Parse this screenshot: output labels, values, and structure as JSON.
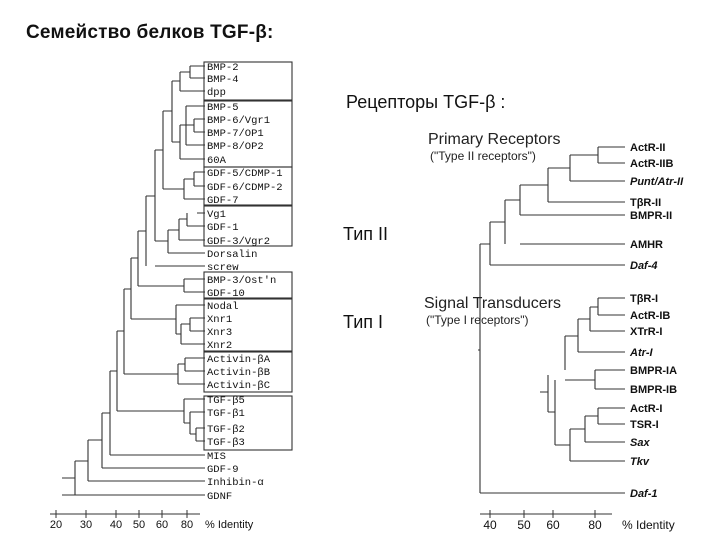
{
  "slide": {
    "title": "Семейство белков TGF-β:",
    "receptor_title": "Рецепторы TGF-β :",
    "type_ii_label": "Тип II",
    "type_i_label": "Тип I"
  },
  "left_tree": {
    "leaves": [
      "BMP-2",
      "BMP-4",
      "dpp",
      "BMP-5",
      "BMP-6/Vgr1",
      "BMP-7/OP1",
      "BMP-8/OP2",
      "60A",
      "GDF-5/CDMP-1",
      "GDF-6/CDMP-2",
      "GDF-7",
      "Vg1",
      "GDF-1",
      "GDF-3/Vgr2",
      "Dorsalin",
      "screw",
      "BMP-3/Ost'n",
      "GDF-10",
      "Nodal",
      "Xnr1",
      "Xnr3",
      "Xnr2",
      "Activin-βA",
      "Activin-βB",
      "Activin-βC",
      "TGF-β5",
      "TGF-β1",
      "TGF-β2",
      "TGF-β3",
      "MIS",
      "GDF-9",
      "Inhibin-α",
      "GDNF"
    ],
    "axis_ticks": [
      "20",
      "30",
      "40",
      "50",
      "60",
      "80"
    ],
    "axis_label": "% Identity"
  },
  "right_tree": {
    "primary_heading": "Primary Receptors",
    "primary_sub": "(\"Type II receptors\")",
    "transducer_heading": "Signal Transducers",
    "transducer_sub": "(\"Type I receptors\")",
    "leaves": [
      "ActR-II",
      "ActR-IIB",
      "Punt/Atr-II",
      "TβR-II",
      "BMPR-II",
      "AMHR",
      "Daf-4",
      "TβR-I",
      "ActR-IB",
      "XTrR-I",
      "Atr-I",
      "BMPR-IA",
      "BMPR-IB",
      "ActR-I",
      "TSR-I",
      "Sax",
      "Tkv",
      "Daf-1"
    ],
    "axis_ticks": [
      "40",
      "50",
      "60",
      "80"
    ],
    "axis_label": "% Identity"
  }
}
